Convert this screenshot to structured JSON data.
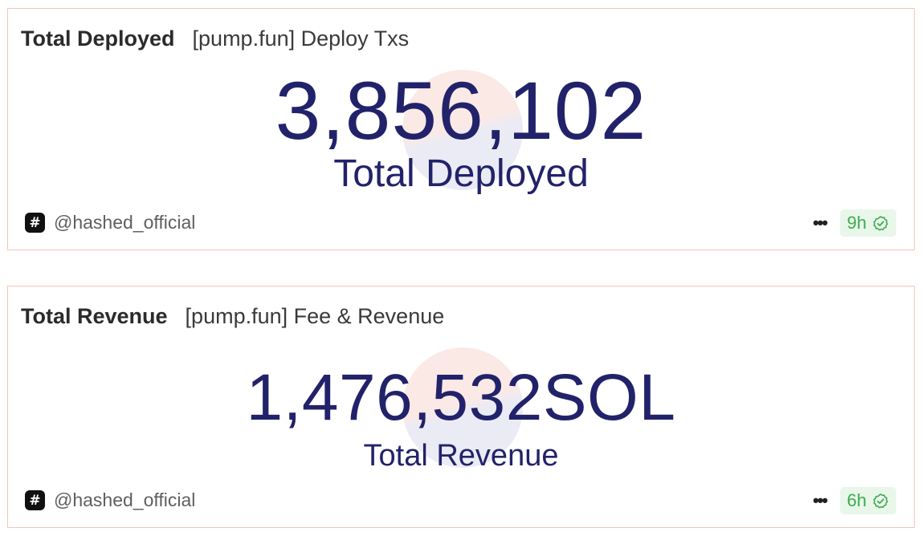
{
  "cards": [
    {
      "title": "Total Deployed",
      "query_title": "[pump.fun] Deploy Txs",
      "value": "3,856,102",
      "label": "Total Deployed",
      "author": "@hashed_official",
      "age": "9h",
      "icons": {
        "author": "hash-icon",
        "more": "more-dots-icon",
        "verified": "check-badge-icon"
      }
    },
    {
      "title": "Total Revenue",
      "query_title": "[pump.fun] Fee & Revenue",
      "value": "1,476,532SOL",
      "label": "Total Revenue",
      "author": "@hashed_official",
      "age": "6h",
      "icons": {
        "author": "hash-icon",
        "more": "more-dots-icon",
        "verified": "check-badge-icon"
      }
    }
  ],
  "colors": {
    "card_border": "#f3c6bb",
    "counter_text": "#22226b",
    "badge_bg": "#e9f7ea",
    "badge_text": "#3eaa50"
  },
  "glyphs": {
    "hash": "#",
    "more": "•••"
  }
}
